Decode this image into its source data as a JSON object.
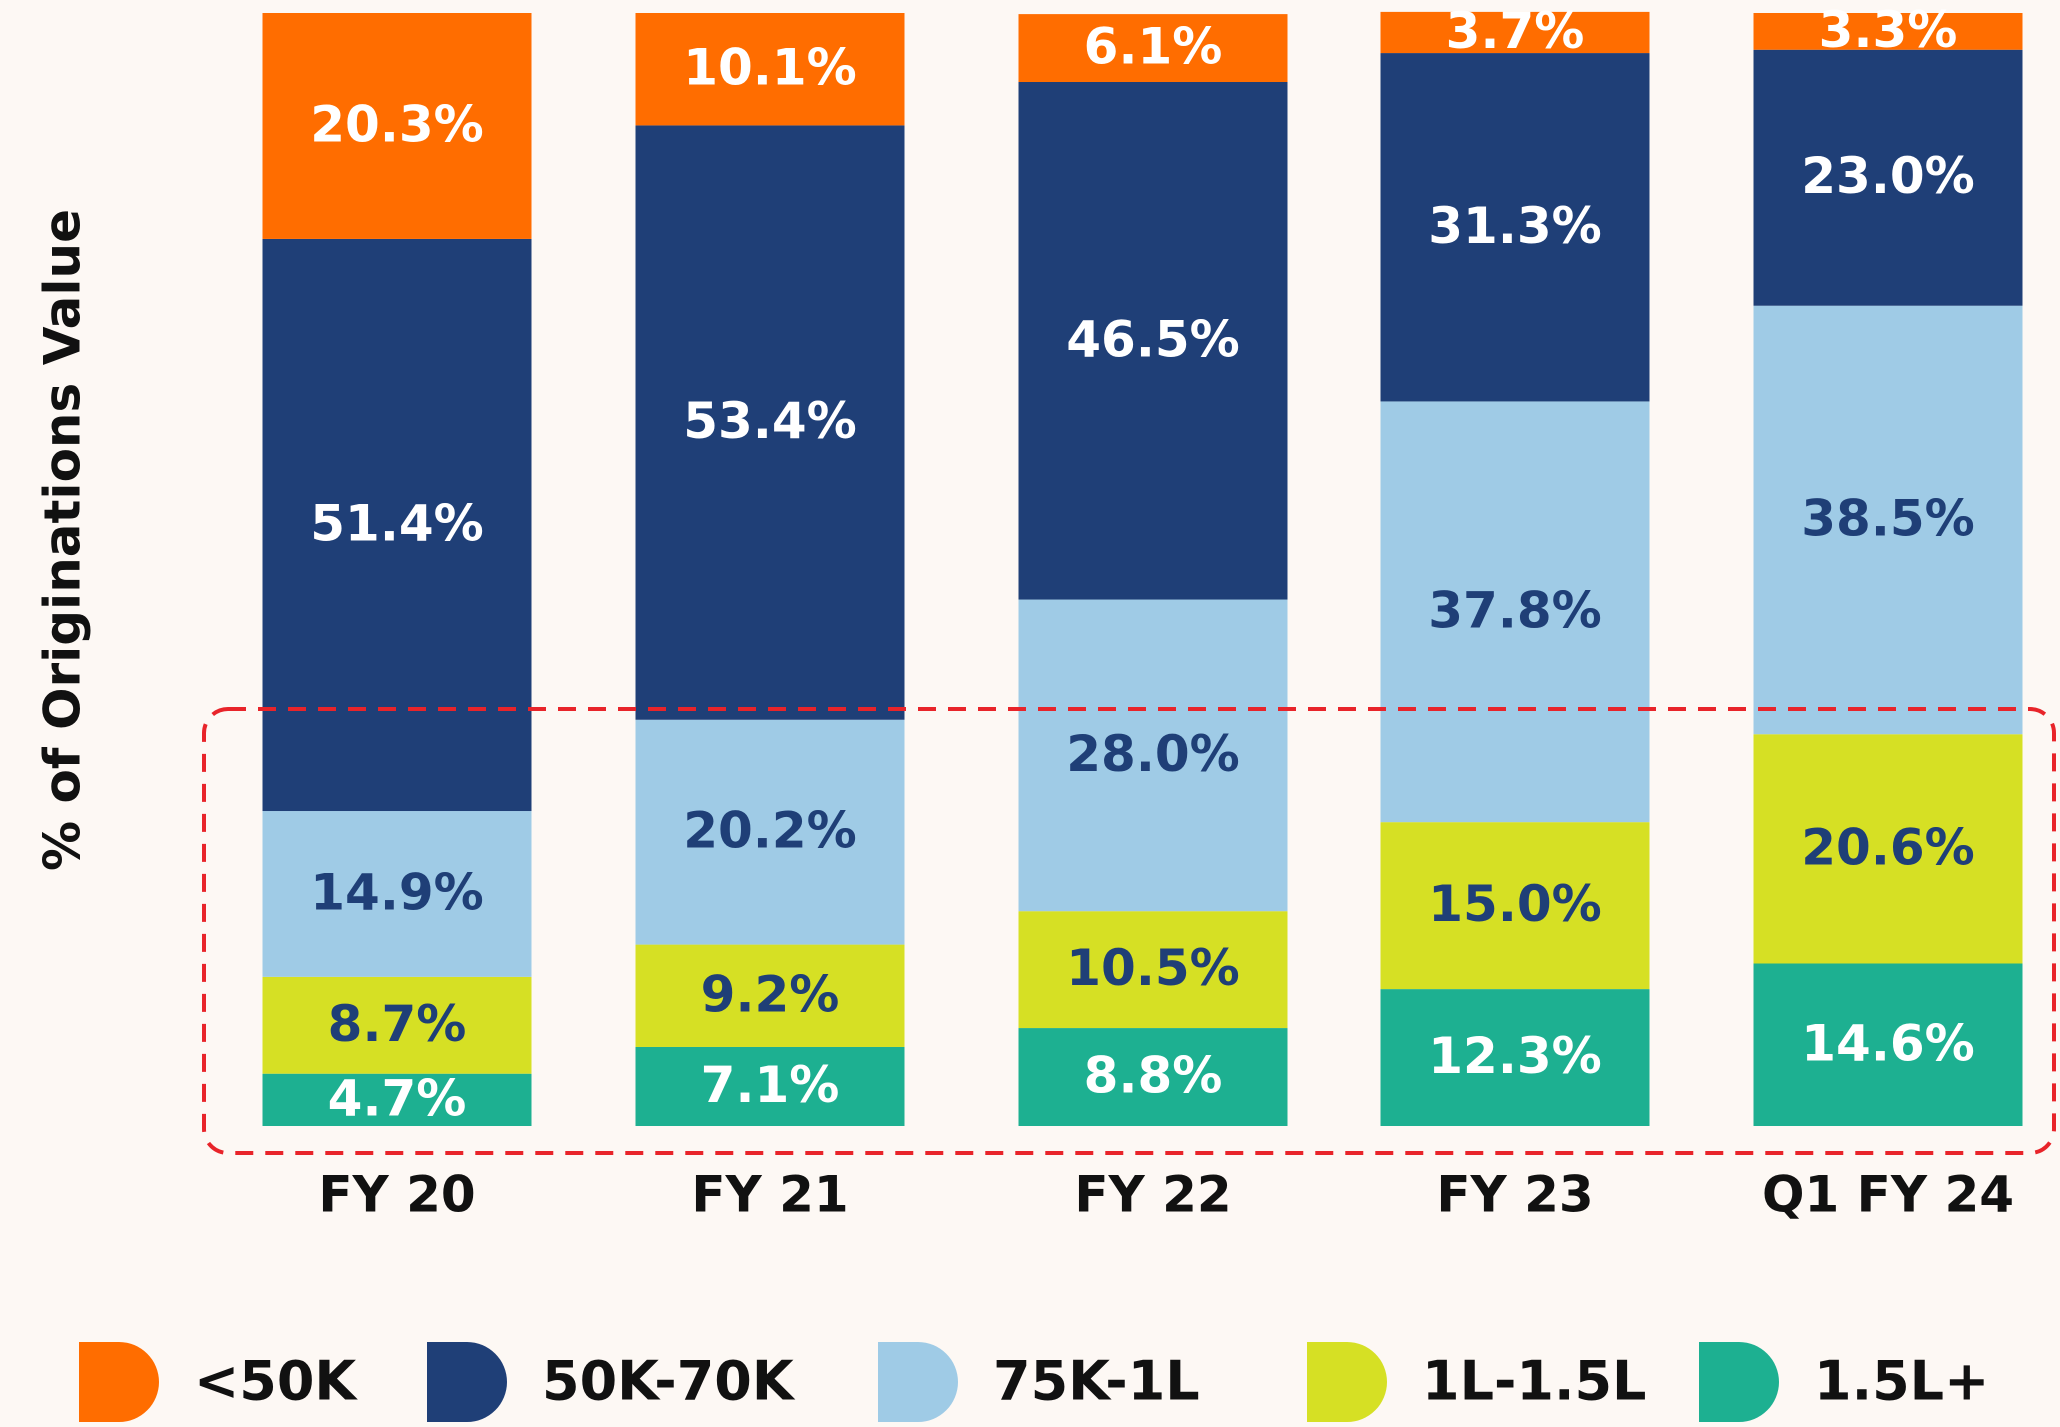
{
  "chart_data": {
    "type": "stacked_bar",
    "y_label": "% of Originations Value",
    "categories": [
      "FY 20",
      "FY 21",
      "FY 22",
      "FY 23",
      "Q1 FY 24"
    ],
    "ylim": [
      0,
      100
    ],
    "series": [
      {
        "name": "1.5L+",
        "color": "#1db091",
        "label_color": "#ffffff",
        "values": [
          4.7,
          7.1,
          8.8,
          12.3,
          14.6
        ],
        "value_labels": [
          "4.7%",
          "7.1%",
          "8.8%",
          "12.3%",
          "14.6%"
        ]
      },
      {
        "name": "1L-1.5L",
        "color": "#d6e024",
        "label_color": "#1f3f77",
        "values": [
          8.7,
          9.2,
          10.5,
          15.0,
          20.6
        ],
        "value_labels": [
          "8.7%",
          "9.2%",
          "10.5%",
          "15.0%",
          "20.6%"
        ]
      },
      {
        "name": "75K-1L",
        "color": "#9fcbe6",
        "label_color": "#1f3f77",
        "values": [
          14.9,
          20.2,
          28.0,
          37.8,
          38.5
        ],
        "value_labels": [
          "14.9%",
          "20.2%",
          "28.0%",
          "37.8%",
          "38.5%"
        ]
      },
      {
        "name": "50K-70K",
        "color": "#1f3f77",
        "label_color": "#ffffff",
        "values": [
          51.4,
          53.4,
          46.5,
          31.3,
          23.0
        ],
        "value_labels": [
          "51.4%",
          "53.4%",
          "46.5%",
          "31.3%",
          "23.0%"
        ]
      },
      {
        "name": "<50K",
        "color": "#ff6d00",
        "label_color": "#ffffff",
        "values": [
          20.3,
          10.1,
          6.1,
          3.7,
          3.3
        ],
        "value_labels": [
          "20.3%",
          "10.1%",
          "6.1%",
          "3.7%",
          "3.3%"
        ]
      }
    ],
    "legend_order": [
      4,
      3,
      2,
      1,
      0
    ]
  }
}
